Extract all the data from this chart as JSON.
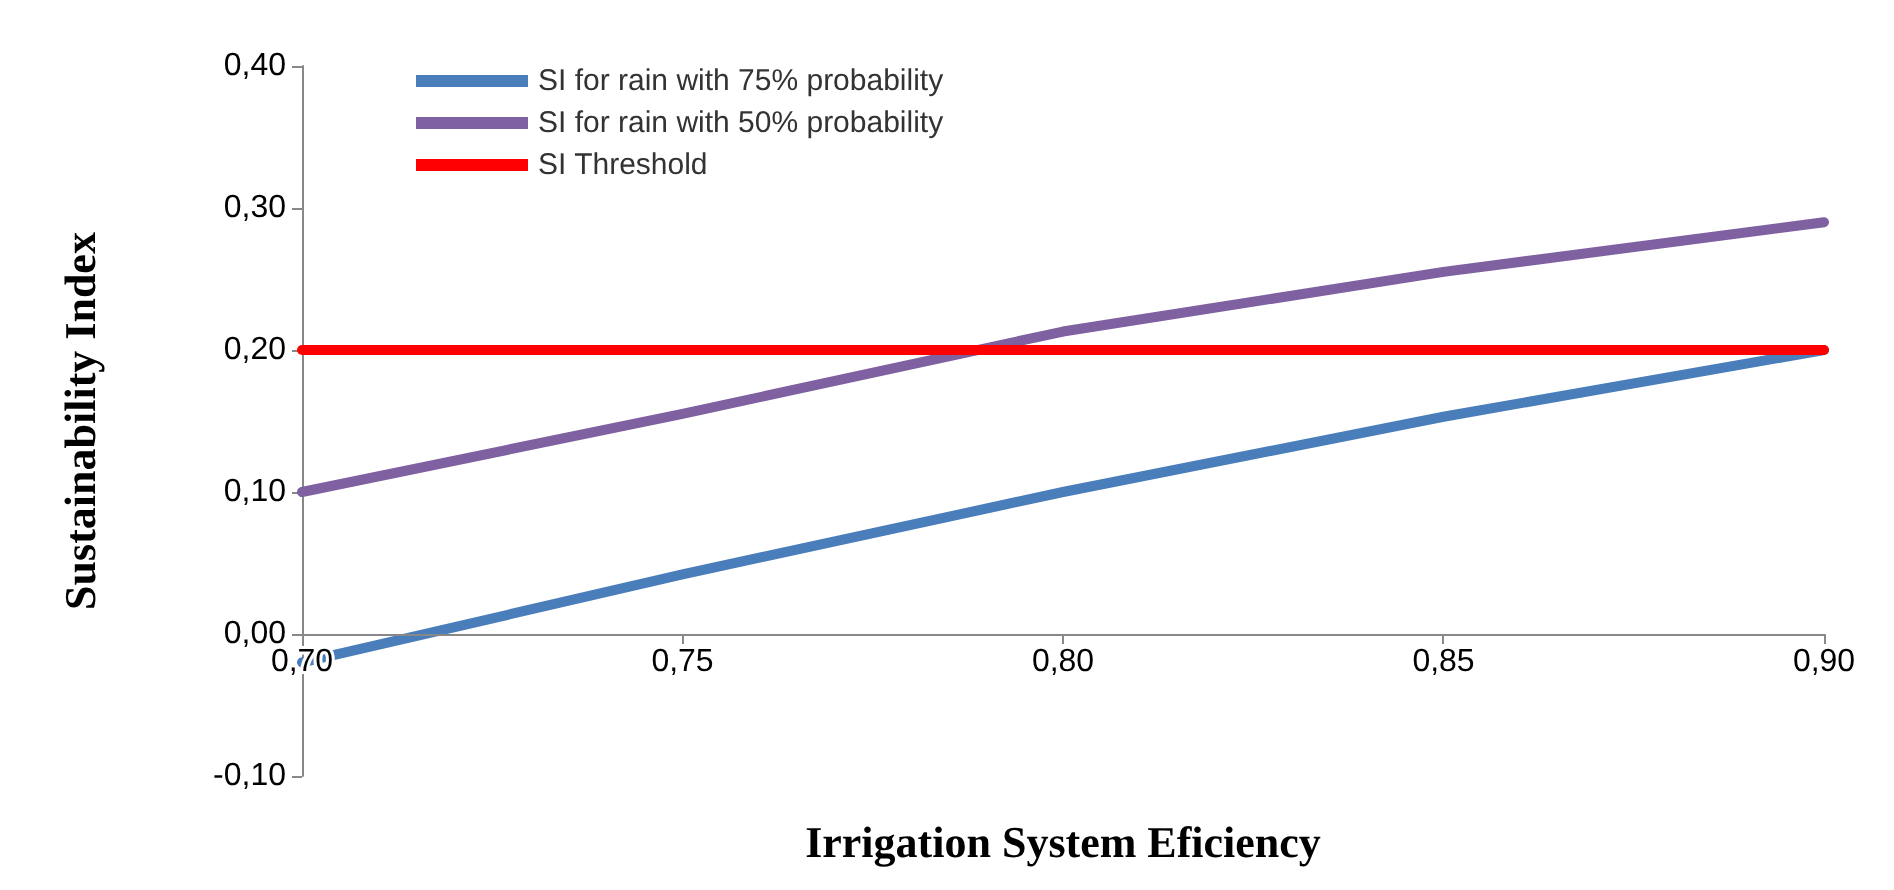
{
  "chart_data": {
    "type": "line",
    "xlabel": "Irrigation System Eficiency",
    "ylabel": "Sustainability Index",
    "x": [
      0.7,
      0.75,
      0.8,
      0.85,
      0.9
    ],
    "series": [
      {
        "name": "SI for rain with 75% probability",
        "color": "#4a7ebb",
        "values": [
          -0.02,
          0.042,
          0.1,
          0.153,
          0.2
        ]
      },
      {
        "name": "SI for rain with 50% probability",
        "color": "#7f60a0",
        "values": [
          0.1,
          0.155,
          0.213,
          0.255,
          0.29
        ]
      },
      {
        "name": "SI Threshold",
        "color": "#ff0000",
        "values": [
          0.2,
          0.2,
          0.2,
          0.2,
          0.2
        ]
      }
    ],
    "xlim": [
      0.7,
      0.9
    ],
    "xticks": [
      {
        "value": 0.7,
        "label": "0,70"
      },
      {
        "value": 0.75,
        "label": "0,75"
      },
      {
        "value": 0.8,
        "label": "0,80"
      },
      {
        "value": 0.85,
        "label": "0,85"
      },
      {
        "value": 0.9,
        "label": "0,90"
      }
    ],
    "ylim": [
      -0.1,
      0.4
    ],
    "yticks": [
      {
        "value": -0.1,
        "label": "-0,10"
      },
      {
        "value": 0.0,
        "label": "0,00"
      },
      {
        "value": 0.1,
        "label": "0,10"
      },
      {
        "value": 0.2,
        "label": "0,20"
      },
      {
        "value": 0.3,
        "label": "0,30"
      },
      {
        "value": 0.4,
        "label": "0,40"
      }
    ],
    "grid": false,
    "legend": "top left",
    "marker": "none",
    "line_style": "solid"
  }
}
